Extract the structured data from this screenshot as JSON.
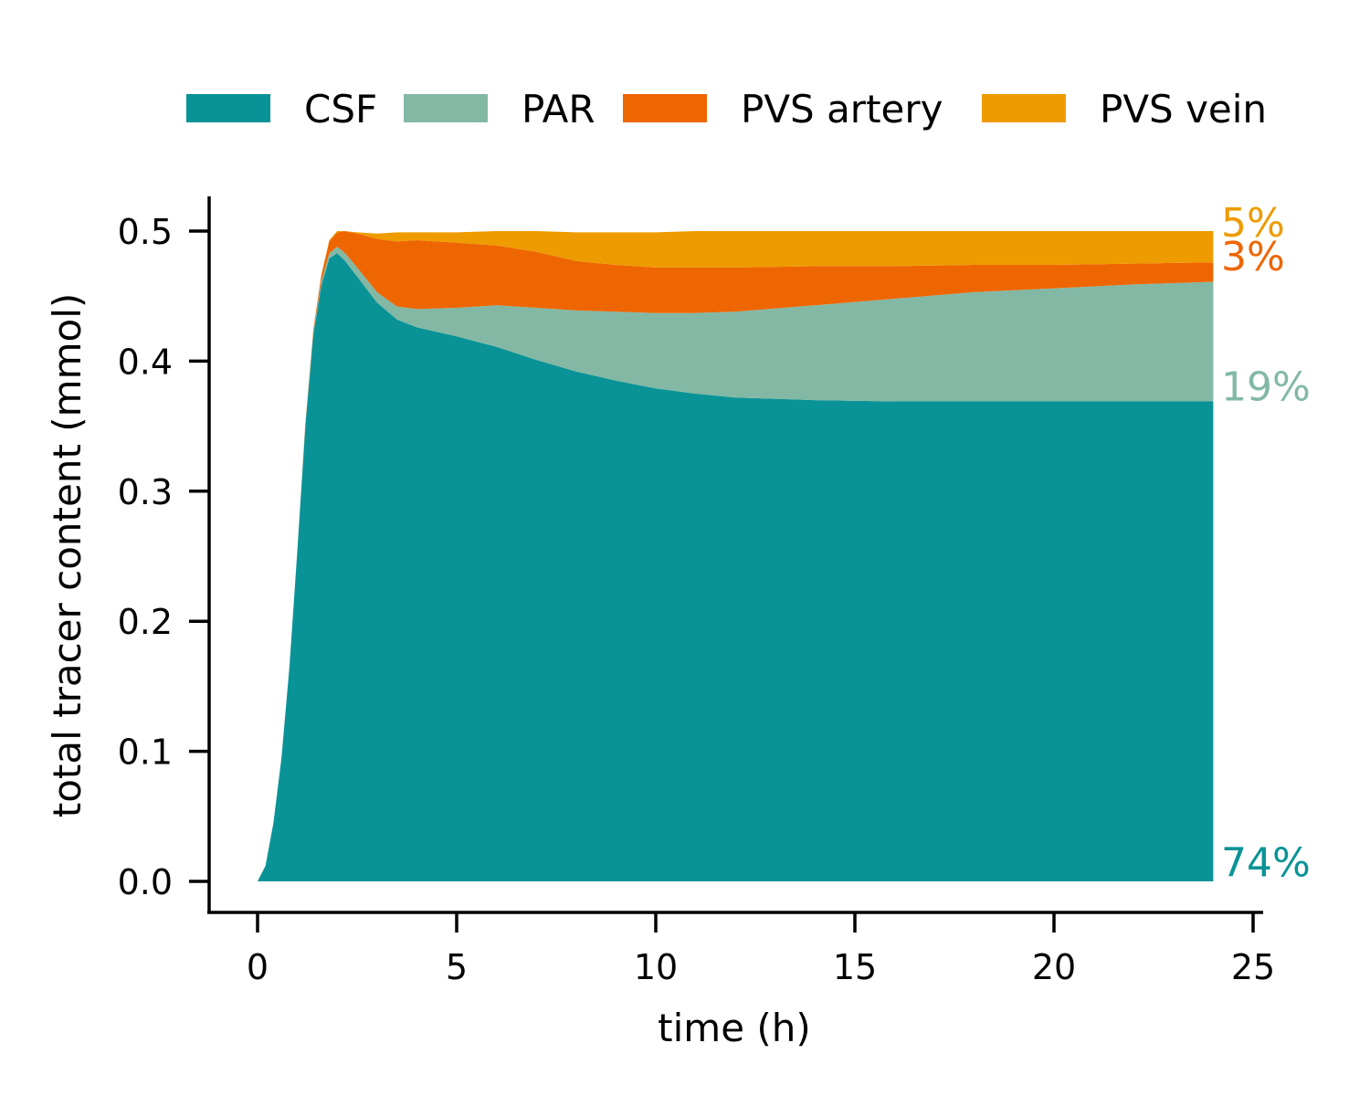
{
  "chart_data": {
    "type": "area",
    "stacked": true,
    "xlabel": "time (h)",
    "ylabel": "total tracer content (mmol)",
    "xlim": [
      -1.2,
      25.2
    ],
    "ylim": [
      -0.025,
      0.525
    ],
    "xticks": [
      0,
      5,
      10,
      15,
      20,
      25
    ],
    "xtick_labels": [
      "0",
      "5",
      "10",
      "15",
      "20",
      "25"
    ],
    "yticks": [
      0.0,
      0.1,
      0.2,
      0.3,
      0.4,
      0.5
    ],
    "ytick_labels": [
      "0.0",
      "0.1",
      "0.2",
      "0.3",
      "0.4",
      "0.5"
    ],
    "legend_position": "top",
    "grid": false,
    "x": [
      0,
      0.2,
      0.4,
      0.6,
      0.8,
      1.0,
      1.2,
      1.4,
      1.6,
      1.8,
      2.0,
      2.2,
      2.5,
      3.0,
      3.5,
      4.0,
      5.0,
      6.0,
      7.0,
      8.0,
      9.0,
      10.0,
      11.0,
      12.0,
      14.0,
      16.0,
      18.0,
      20.0,
      22.0,
      24.0
    ],
    "series": [
      {
        "name": "CSF",
        "color": "#0a9396",
        "values": [
          0.0,
          0.012,
          0.045,
          0.095,
          0.165,
          0.255,
          0.35,
          0.42,
          0.458,
          0.479,
          0.483,
          0.477,
          0.465,
          0.445,
          0.432,
          0.426,
          0.419,
          0.411,
          0.401,
          0.392,
          0.385,
          0.379,
          0.375,
          0.372,
          0.37,
          0.369,
          0.369,
          0.369,
          0.369,
          0.369
        ]
      },
      {
        "name": "PAR",
        "color": "#83b8a5",
        "values": [
          0.0,
          0.0,
          0.0,
          0.0,
          0.0,
          0.0,
          0.001,
          0.002,
          0.003,
          0.004,
          0.005,
          0.006,
          0.007,
          0.008,
          0.01,
          0.014,
          0.022,
          0.032,
          0.04,
          0.047,
          0.053,
          0.058,
          0.062,
          0.066,
          0.073,
          0.079,
          0.084,
          0.087,
          0.09,
          0.092
        ]
      },
      {
        "name": "PVS artery",
        "color": "#ee6602",
        "values": [
          0.0,
          0.0,
          0.0,
          0.0,
          0.0,
          0.0,
          0.001,
          0.002,
          0.005,
          0.009,
          0.011,
          0.017,
          0.026,
          0.041,
          0.05,
          0.053,
          0.05,
          0.046,
          0.043,
          0.038,
          0.036,
          0.035,
          0.035,
          0.034,
          0.03,
          0.025,
          0.021,
          0.018,
          0.016,
          0.015
        ]
      },
      {
        "name": "PVS vein",
        "color": "#ee9b00",
        "values": [
          0.0,
          0.0,
          0.0,
          0.0,
          0.0,
          0.0,
          0.0,
          0.0,
          0.0,
          0.001,
          0.001,
          0.0,
          0.001,
          0.004,
          0.007,
          0.006,
          0.008,
          0.011,
          0.016,
          0.022,
          0.025,
          0.027,
          0.028,
          0.028,
          0.027,
          0.027,
          0.026,
          0.026,
          0.025,
          0.024
        ]
      }
    ],
    "end_labels": [
      {
        "series": "PVS vein",
        "text": "5%",
        "color": "#ee9b00",
        "y": 0.5
      },
      {
        "series": "PVS artery",
        "text": "3%",
        "color": "#ee6602",
        "y": 0.474
      },
      {
        "series": "PAR",
        "text": "19%",
        "color": "#83b8a5",
        "y": 0.374
      },
      {
        "series": "CSF",
        "text": "74%",
        "color": "#0a9396",
        "y": 0.008
      }
    ]
  }
}
